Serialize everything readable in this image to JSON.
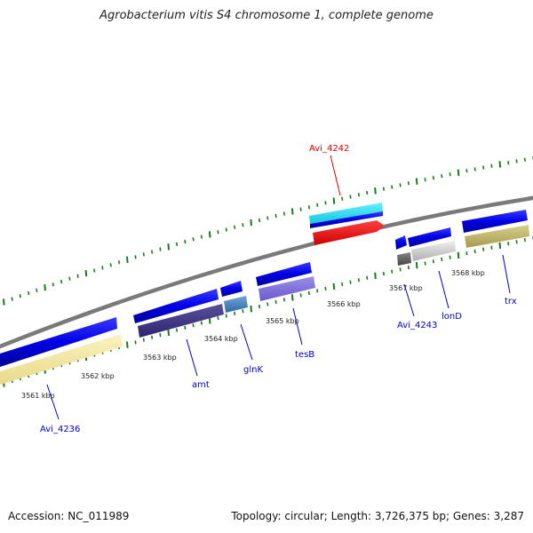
{
  "title": "Agrobacterium vitis S4 chromosome 1, complete genome",
  "footer": {
    "accession": "Accession: NC_011989",
    "summary": "Topology: circular; Length: 3,726,375 bp; Genes: 3,287"
  },
  "scale_labels": [
    "3561 kbp",
    "3562 kbp",
    "3563 kbp",
    "3564 kbp",
    "3565 kbp",
    "3566 kbp",
    "3567 kbp",
    "3568 kbp"
  ],
  "gene_labels": [
    {
      "name": "Avi_4242",
      "color": "#dd0000"
    },
    {
      "name": "Avi_4236",
      "color": "#0000cc"
    },
    {
      "name": "amt",
      "color": "#0000cc"
    },
    {
      "name": "glnK",
      "color": "#0000cc"
    },
    {
      "name": "tesB",
      "color": "#0000cc"
    },
    {
      "name": "Avi_4243",
      "color": "#0000cc"
    },
    {
      "name": "lonD",
      "color": "#0000cc"
    },
    {
      "name": "trx",
      "color": "#0000cc"
    }
  ],
  "colors": {
    "backbone": "#808080",
    "tick": "#1a7a1a",
    "cds_strand": "#0000e6",
    "cds_highlight": "#ee0000",
    "rna": "#22ddee"
  }
}
